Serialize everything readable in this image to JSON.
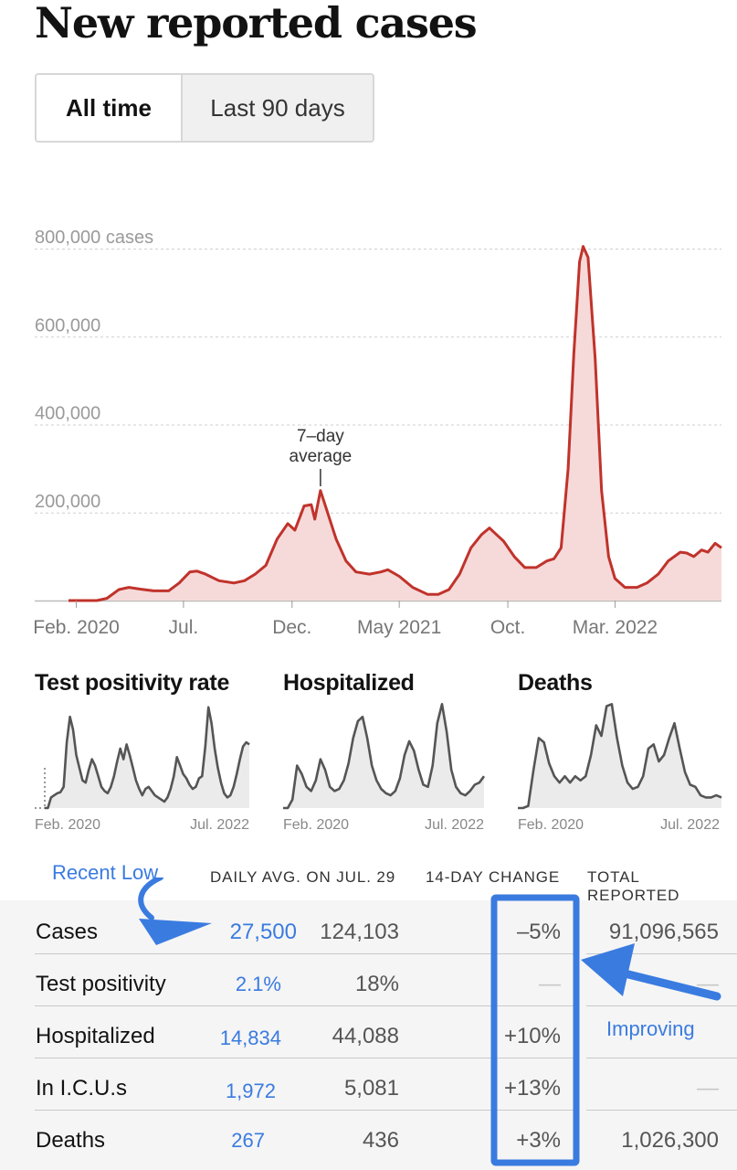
{
  "title": "New reported cases",
  "tabs": [
    {
      "label": "All time",
      "active": true
    },
    {
      "label": "Last 90 days",
      "active": false
    }
  ],
  "chart_data": [
    {
      "type": "area",
      "name": "New reported cases",
      "y_tick_labels": [
        "800,000 cases",
        "600,000",
        "400,000",
        "200,000"
      ],
      "y_ticks": [
        800000,
        600000,
        400000,
        200000
      ],
      "ylim": [
        0,
        800000
      ],
      "x_tick_labels": [
        "Feb. 2020",
        "Jul.",
        "Dec.",
        "May 2021",
        "Oct.",
        "Mar. 2022"
      ],
      "x_tick_dates": [
        "2020-02-01",
        "2020-07-01",
        "2020-12-01",
        "2021-05-01",
        "2021-10-01",
        "2022-03-01"
      ],
      "xlim": [
        "2020-01-21",
        "2022-07-29"
      ],
      "annotation": {
        "line1": "7–day",
        "line2": "average",
        "date": "2021-01-10"
      },
      "grid": true,
      "color": "#c0332b",
      "fill": "#f6dada",
      "series": [
        {
          "x": [
            "2020-01-21",
            "2020-03-01",
            "2020-03-15",
            "2020-04-01",
            "2020-04-15",
            "2020-05-01",
            "2020-05-20",
            "2020-06-10",
            "2020-06-25",
            "2020-07-10",
            "2020-07-20",
            "2020-08-01",
            "2020-08-20",
            "2020-09-10",
            "2020-09-25",
            "2020-10-10",
            "2020-10-25",
            "2020-11-10",
            "2020-11-25",
            "2020-12-05",
            "2020-12-18",
            "2020-12-28",
            "2021-01-02",
            "2021-01-10",
            "2021-01-20",
            "2021-02-01",
            "2021-02-15",
            "2021-03-01",
            "2021-03-20",
            "2021-04-05",
            "2021-04-15",
            "2021-05-01",
            "2021-05-20",
            "2021-06-10",
            "2021-06-25",
            "2021-07-10",
            "2021-07-25",
            "2021-08-10",
            "2021-08-25",
            "2021-09-05",
            "2021-09-15",
            "2021-09-25",
            "2021-10-10",
            "2021-10-25",
            "2021-11-10",
            "2021-11-25",
            "2021-12-05",
            "2021-12-15",
            "2021-12-25",
            "2022-01-02",
            "2022-01-10",
            "2022-01-15",
            "2022-01-22",
            "2022-02-01",
            "2022-02-10",
            "2022-02-20",
            "2022-03-01",
            "2022-03-15",
            "2022-04-01",
            "2022-04-15",
            "2022-05-01",
            "2022-05-15",
            "2022-06-01",
            "2022-06-10",
            "2022-06-20",
            "2022-07-01",
            "2022-07-10",
            "2022-07-20",
            "2022-07-29"
          ],
          "y": [
            0,
            0,
            5000,
            25000,
            30000,
            26000,
            22000,
            22000,
            40000,
            65000,
            67000,
            60000,
            45000,
            40000,
            45000,
            60000,
            80000,
            140000,
            175000,
            160000,
            215000,
            218000,
            185000,
            250000,
            200000,
            140000,
            90000,
            65000,
            60000,
            65000,
            70000,
            55000,
            30000,
            14000,
            14000,
            25000,
            60000,
            120000,
            150000,
            165000,
            150000,
            135000,
            100000,
            75000,
            75000,
            90000,
            95000,
            120000,
            300000,
            560000,
            770000,
            805000,
            780000,
            550000,
            250000,
            100000,
            50000,
            30000,
            30000,
            40000,
            60000,
            90000,
            110000,
            108000,
            100000,
            115000,
            110000,
            130000,
            120000
          ]
        }
      ]
    },
    {
      "type": "area",
      "title": "Test positivity rate",
      "x_tick_labels": [
        "Feb. 2020",
        "Jul. 2022"
      ],
      "color": "#555555",
      "fill": "#ebebeb",
      "series": [
        {
          "values": [
            0,
            0,
            0.1,
            0.12,
            0.14,
            0.15,
            0.2,
            0.62,
            0.86,
            0.74,
            0.5,
            0.38,
            0.26,
            0.24,
            0.36,
            0.46,
            0.4,
            0.3,
            0.2,
            0.16,
            0.14,
            0.2,
            0.3,
            0.44,
            0.56,
            0.46,
            0.6,
            0.5,
            0.38,
            0.26,
            0.18,
            0.12,
            0.18,
            0.2,
            0.16,
            0.12,
            0.1,
            0.08,
            0.06,
            0.1,
            0.18,
            0.3,
            0.48,
            0.4,
            0.32,
            0.28,
            0.22,
            0.18,
            0.2,
            0.28,
            0.3,
            0.58,
            0.95,
            0.8,
            0.56,
            0.38,
            0.24,
            0.14,
            0.1,
            0.12,
            0.2,
            0.32,
            0.46,
            0.58,
            0.62,
            0.6
          ]
        }
      ]
    },
    {
      "type": "area",
      "title": "Hospitalized",
      "x_tick_labels": [
        "Feb. 2020",
        "Jul. 2022"
      ],
      "color": "#555555",
      "fill": "#ebebeb",
      "series": [
        {
          "values": [
            0,
            0,
            0.08,
            0.4,
            0.32,
            0.2,
            0.16,
            0.26,
            0.46,
            0.36,
            0.2,
            0.16,
            0.18,
            0.26,
            0.42,
            0.66,
            0.82,
            0.86,
            0.66,
            0.4,
            0.26,
            0.18,
            0.14,
            0.12,
            0.16,
            0.28,
            0.5,
            0.63,
            0.54,
            0.36,
            0.22,
            0.2,
            0.4,
            0.8,
            0.98,
            0.72,
            0.36,
            0.2,
            0.14,
            0.12,
            0.16,
            0.22,
            0.24,
            0.3
          ]
        }
      ]
    },
    {
      "type": "area",
      "title": "Deaths",
      "x_tick_labels": [
        "Feb. 2020",
        "Jul. 2022"
      ],
      "color": "#555555",
      "fill": "#ebebeb",
      "series": [
        {
          "values": [
            0,
            0,
            0.02,
            0.36,
            0.66,
            0.62,
            0.42,
            0.3,
            0.24,
            0.3,
            0.24,
            0.3,
            0.26,
            0.3,
            0.5,
            0.78,
            0.68,
            0.96,
            0.98,
            0.66,
            0.4,
            0.24,
            0.18,
            0.2,
            0.3,
            0.56,
            0.6,
            0.44,
            0.5,
            0.66,
            0.8,
            0.56,
            0.34,
            0.22,
            0.2,
            0.12,
            0.1,
            0.1,
            0.12,
            0.1
          ]
        }
      ]
    }
  ],
  "table": {
    "annotation_recent_low": "Recent Low",
    "annotation_improving": "Improving",
    "headers": {
      "daily_avg": "DAILY AVG. ON JUL. 29",
      "change": "14-DAY CHANGE",
      "total": "TOTAL REPORTED"
    },
    "rows": [
      {
        "label": "Cases",
        "recent_low": "27,500",
        "daily_avg": "124,103",
        "change": "–5%",
        "total": "91,096,565"
      },
      {
        "label": "Test positivity",
        "recent_low": "2.1%",
        "daily_avg": "18%",
        "change": "—",
        "total": "—"
      },
      {
        "label": "Hospitalized",
        "recent_low": "14,834",
        "daily_avg": "44,088",
        "change": "+10%",
        "total": "—"
      },
      {
        "label": "In I.C.U.s",
        "recent_low": "1,972",
        "daily_avg": "5,081",
        "change": "+13%",
        "total": "—"
      },
      {
        "label": "Deaths",
        "recent_low": "267",
        "daily_avg": "436",
        "change": "+3%",
        "total": "1,026,300"
      }
    ],
    "highlight_color": "#3a7be0"
  }
}
